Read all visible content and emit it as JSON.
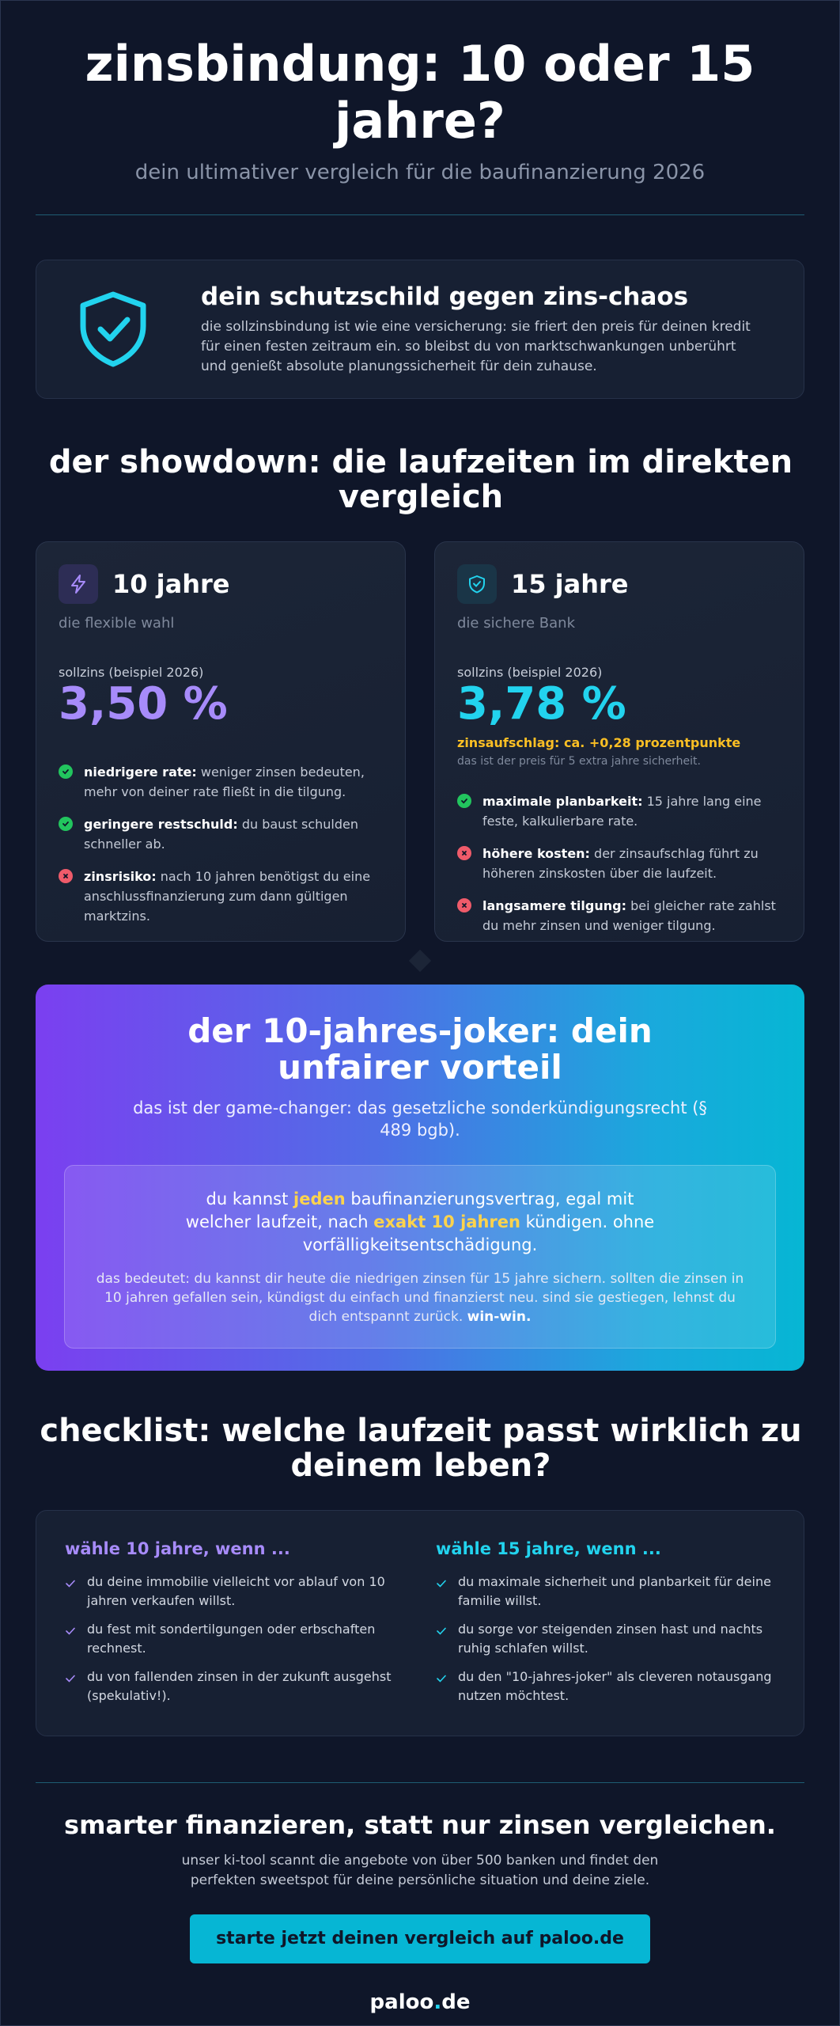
{
  "header": {
    "title": "zinsbindung: 10 oder 15 jahre?",
    "subtitle": "dein ultimativer vergleich für die baufinanzierung 2026"
  },
  "shield_card": {
    "icon": "shield-check-icon",
    "title": "dein schutzschild gegen zins-chaos",
    "text": "die sollzinsbindung ist wie eine versicherung: sie friert den preis für deinen kredit für einen festen zeitraum ein. so bleibst du von marktschwankungen unberührt und genießt absolute planungssicherheit für dein zuhause."
  },
  "showdown": {
    "title": "der showdown: die laufzeiten im direkten vergleich",
    "plans": [
      {
        "icon": "lightning-icon",
        "name": "10 jahre",
        "tagline": "die flexible wahl",
        "rate_label": "sollzins (beispiel 2026)",
        "rate": "3,50 %",
        "points": [
          {
            "type": "pro",
            "bold": "niedrigere rate:",
            "text": " weniger zinsen bedeuten, mehr von deiner rate fließt in die tilgung."
          },
          {
            "type": "pro",
            "bold": "geringere restschuld:",
            "text": " du baust schulden schneller ab."
          },
          {
            "type": "con",
            "bold": "zinsrisiko:",
            "text": " nach 10 jahren benötigst du eine anschlussfinanzierung zum dann gültigen marktzins."
          }
        ]
      },
      {
        "icon": "shield-check-icon",
        "name": "15 jahre",
        "tagline": "die sichere Bank",
        "rate_label": "sollzins (beispiel 2026)",
        "rate": "3,78 %",
        "surcharge": "zinsaufschlag: ca. +0,28 prozentpunkte",
        "surcharge_note": "das ist der preis für 5 extra jahre sicherheit.",
        "points": [
          {
            "type": "pro",
            "bold": "maximale planbarkeit:",
            "text": " 15 jahre lang eine feste, kalkulierbare rate."
          },
          {
            "type": "con",
            "bold": "höhere kosten:",
            "text": " der zinsaufschlag führt zu höheren zinskosten über die laufzeit."
          },
          {
            "type": "con",
            "bold": "langsamere tilgung:",
            "text": " bei gleicher rate zahlst du mehr zinsen und weniger tilgung."
          }
        ]
      }
    ]
  },
  "joker": {
    "title": "der 10-jahres-joker: dein unfairer vorteil",
    "lead": "das ist der game-changer: das gesetzliche sonderkündigungsrecht (§ 489 bgb).",
    "big_1": "du kannst ",
    "big_hl_1": "jeden",
    "big_2": " baufinanzierungsvertrag, egal mit welcher laufzeit, nach ",
    "big_hl_2": "exakt 10 jahren",
    "big_3": " kündigen. ohne vorfälligkeitsentschädigung.",
    "small": "das bedeutet: du kannst dir heute die niedrigen zinsen für 15 jahre sichern. sollten die zinsen in 10 jahren gefallen sein, kündigst du einfach und finanzierst neu. sind sie gestiegen, lehnst du dich entspannt zurück. ",
    "small_bold": "win-win."
  },
  "checklist": {
    "title": "checklist: welche laufzeit passt wirklich zu deinem leben?",
    "columns": [
      {
        "heading": "wähle 10 jahre, wenn ...",
        "items": [
          "du deine immobilie vielleicht vor ablauf von 10 jahren verkaufen willst.",
          "du fest mit sondertilgungen oder erbschaften rechnest.",
          "du von fallenden zinsen in der zukunft ausgehst (spekulativ!)."
        ]
      },
      {
        "heading": "wähle 15 jahre, wenn ...",
        "items": [
          "du maximale sicherheit und planbarkeit für deine familie willst.",
          "du sorge vor steigenden zinsen hast und nachts ruhig schlafen willst.",
          "du den \"10-jahres-joker\" als cleveren notausgang nutzen möchtest."
        ]
      }
    ]
  },
  "footer": {
    "title": "smarter finanzieren, statt nur zinsen vergleichen.",
    "text": "unser ki-tool scannt die angebote von über 500 banken und findet den perfekten sweetspot für deine persönliche situation und deine ziele.",
    "cta": "starte jetzt deinen vergleich auf paloo.de",
    "brand_name": "paloo",
    "brand_dot": ".",
    "brand_tld": "de"
  },
  "colors": {
    "background": "#0f1629",
    "violet_accent": "#a78bfa",
    "cyan_accent": "#22d3ee",
    "highlight_yellow": "#fbbf24",
    "pro_green": "#22c55e",
    "con_red": "#ef5b6a"
  }
}
